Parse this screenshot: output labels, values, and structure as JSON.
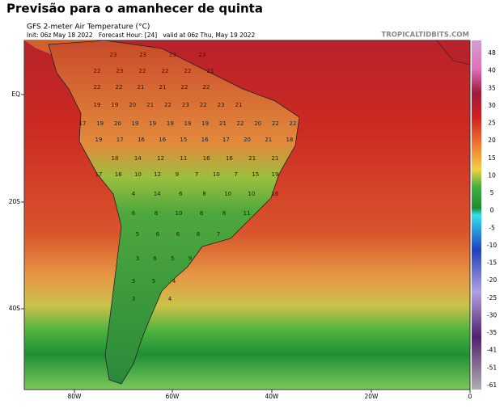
{
  "header": {
    "title": "Previsão para o amanhecer de quinta",
    "subtitle": "GFS 2-meter Air Temperature (°C)",
    "run_info": "Init: 06z May 18 2022   Forecast Hour: [24]   valid at 06z Thu, May 19 2022",
    "source": "TROPICALTIDBITS.COM"
  },
  "map": {
    "longitude_labels": [
      "80W",
      "60W",
      "40W",
      "20W",
      "0"
    ],
    "latitude_labels": [
      "EQ",
      "20S",
      "40S"
    ],
    "station_values": [
      [
        23,
        23,
        23,
        23
      ],
      [
        22,
        23,
        22,
        22,
        22,
        21
      ],
      [
        22,
        22,
        21,
        21,
        22,
        22
      ],
      [
        19,
        19,
        20,
        21,
        22,
        23,
        22,
        23,
        21
      ],
      [
        17,
        19,
        20,
        19,
        19,
        19,
        19,
        19,
        21,
        22,
        20,
        22,
        22
      ],
      [
        19,
        17,
        16,
        16,
        15,
        16,
        17,
        20,
        21,
        18
      ],
      [
        18,
        14,
        12,
        11,
        16,
        16,
        21,
        21
      ],
      [
        17,
        16,
        10,
        12,
        9,
        7,
        10,
        7,
        15,
        19
      ],
      [
        4,
        14,
        6,
        8,
        10,
        10,
        16
      ],
      [
        6,
        8,
        10,
        8,
        8,
        11
      ],
      [
        5,
        6,
        6,
        8,
        7
      ],
      [
        3,
        6,
        5,
        9
      ],
      [
        3,
        5,
        4
      ],
      [
        3,
        4
      ]
    ]
  },
  "colorbar": {
    "labels": [
      48,
      40,
      35,
      30,
      25,
      20,
      15,
      10,
      5,
      0,
      -5,
      -10,
      -15,
      -20,
      -25,
      -30,
      -35,
      -41,
      -51,
      -61
    ]
  }
}
